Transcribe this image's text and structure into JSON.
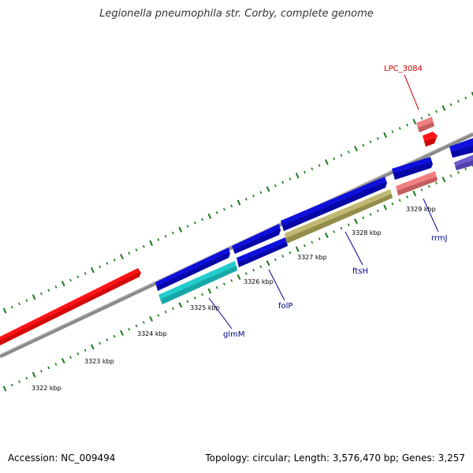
{
  "title": "Legionella pneumophila str. Corby, complete genome",
  "footer": {
    "accession": "Accession: NC_009494",
    "summary": "Topology: circular; Length: 3,576,470 bp; Genes: 3,257"
  },
  "colors": {
    "backbone": "#8a8a8a",
    "tick": "#1a7a1a",
    "forward_gene": "#1010dd",
    "reverse_gene": "#1010dd",
    "rna_gene": "#ff1515",
    "pseudo_gene": "#f08080",
    "cyan_gene": "#22cccc",
    "olive_gene": "#c0b870",
    "purple_gene": "#6a5acd",
    "label_blue": "#00008b",
    "label_red": "#cc0000"
  },
  "ticks": [
    {
      "label": "3322 kbp"
    },
    {
      "label": "3323 kbp"
    },
    {
      "label": "3324 kbp"
    },
    {
      "label": "3325 kbp"
    },
    {
      "label": "3326 kbp"
    },
    {
      "label": "3327 kbp"
    },
    {
      "label": "3328 kbp"
    },
    {
      "label": "3329 kbp"
    }
  ],
  "gene_labels": [
    {
      "name": "glmM"
    },
    {
      "name": "folP"
    },
    {
      "name": "ftsH"
    },
    {
      "name": "rrmJ"
    },
    {
      "name": "LPC_3084"
    }
  ]
}
